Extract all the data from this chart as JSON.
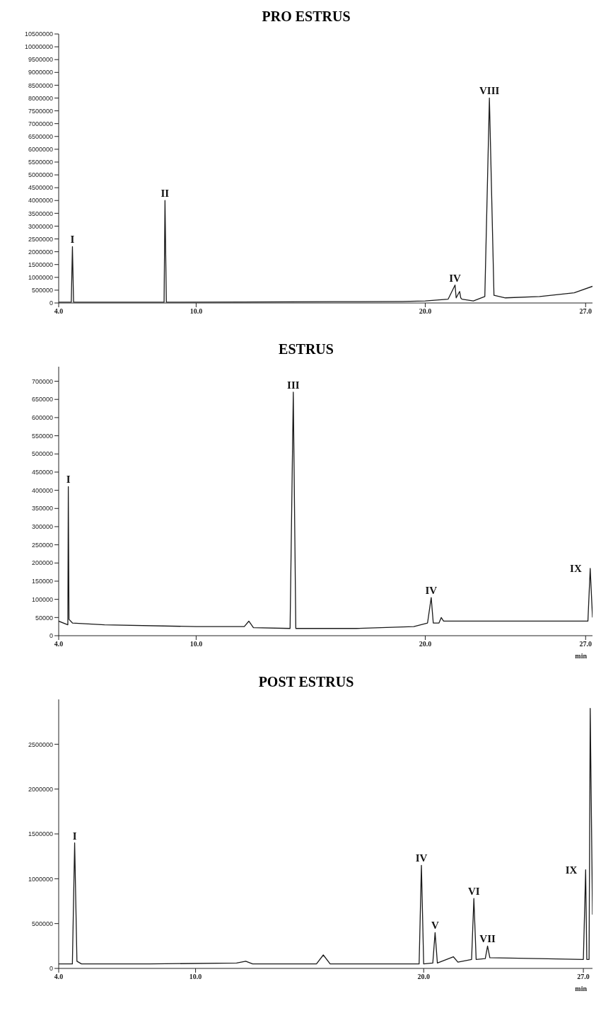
{
  "chart_data": [
    {
      "type": "line",
      "title": "PRO ESTRUS",
      "x": [
        4.0,
        4.55,
        4.6,
        4.65,
        5,
        8,
        8.6,
        8.64,
        8.7,
        12,
        16,
        19,
        20,
        21.0,
        21.3,
        21.35,
        21.5,
        21.55,
        21.6,
        22.1,
        22.6,
        22.8,
        23.0,
        23.5,
        25,
        26.5,
        27.3
      ],
      "series": [
        {
          "color": "#1a1a1a",
          "values": [
            30000,
            30000,
            2200000,
            30000,
            30000,
            30000,
            30000,
            4000000,
            30000,
            40000,
            50000,
            60000,
            80000,
            150000,
            700000,
            200000,
            450000,
            200000,
            150000,
            80000,
            250000,
            8000000,
            300000,
            200000,
            250000,
            400000,
            650000
          ]
        }
      ],
      "xlim": [
        4,
        27.3
      ],
      "xticks": [
        {
          "value": 4,
          "label": "4.0"
        },
        {
          "value": 10,
          "label": "10.0"
        },
        {
          "value": 20,
          "label": "20.0"
        },
        {
          "value": 27,
          "label": "27.0"
        }
      ],
      "ylim": [
        0,
        10500000
      ],
      "yticks": [
        0,
        500000,
        1000000,
        1500000,
        2000000,
        2500000,
        3000000,
        3500000,
        4000000,
        4500000,
        5000000,
        5500000,
        6000000,
        6500000,
        7000000,
        7500000,
        8000000,
        8500000,
        9000000,
        9500000,
        10000000,
        10500000
      ],
      "annotations": [
        {
          "text": "I",
          "x": 4.6,
          "y": 2200000
        },
        {
          "text": "II",
          "x": 8.64,
          "y": 4000000
        },
        {
          "text": "IV",
          "x": 21.3,
          "y": 700000
        },
        {
          "text": "VIII",
          "x": 22.8,
          "y": 8000000
        }
      ],
      "grid": false,
      "legend": false,
      "marker": "none",
      "line_style": "solid"
    },
    {
      "type": "line",
      "title": "ESTRUS",
      "xlabel": "min",
      "x": [
        4.0,
        4.4,
        4.42,
        4.45,
        4.6,
        6,
        10,
        12.1,
        12.3,
        12.5,
        14.1,
        14.24,
        14.35,
        17,
        19.5,
        20.1,
        20.26,
        20.35,
        20.6,
        20.7,
        20.8,
        21,
        24,
        27.1,
        27.2,
        27.3
      ],
      "series": [
        {
          "color": "#1a1a1a",
          "values": [
            40000,
            30000,
            410000,
            45000,
            35000,
            30000,
            25000,
            25000,
            40000,
            22000,
            20000,
            670000,
            20000,
            20000,
            25000,
            35000,
            105000,
            35000,
            35000,
            50000,
            40000,
            40000,
            40000,
            40000,
            185000,
            50000
          ]
        }
      ],
      "xlim": [
        4,
        27.3
      ],
      "xticks": [
        {
          "value": 4,
          "label": "4.0"
        },
        {
          "value": 10,
          "label": "10.0"
        },
        {
          "value": 20,
          "label": "20.0"
        },
        {
          "value": 27,
          "label": "27.0"
        }
      ],
      "ylim": [
        0,
        740000
      ],
      "yticks": [
        0,
        50000,
        100000,
        150000,
        200000,
        250000,
        300000,
        350000,
        400000,
        450000,
        500000,
        550000,
        600000,
        650000,
        700000
      ],
      "annotations": [
        {
          "text": "I",
          "x": 4.42,
          "y": 410000
        },
        {
          "text": "III",
          "x": 14.24,
          "y": 670000
        },
        {
          "text": "IV",
          "x": 20.26,
          "y": 105000
        },
        {
          "text": "IX",
          "x": 27.2,
          "y": 185000
        }
      ],
      "grid": false,
      "legend": false,
      "marker": "none",
      "line_style": "solid"
    },
    {
      "type": "line",
      "title": "POST ESTRUS",
      "xlabel": "min",
      "x": [
        4.0,
        4.6,
        4.7,
        4.8,
        5.0,
        8,
        11.8,
        12.2,
        12.5,
        15.3,
        15.6,
        15.9,
        18,
        19.8,
        19.9,
        20.0,
        20.4,
        20.5,
        20.6,
        21.3,
        21.5,
        22.1,
        22.2,
        22.3,
        22.7,
        22.8,
        22.9,
        25,
        27.0,
        27.1,
        27.15,
        27.25,
        27.3,
        27.4
      ],
      "series": [
        {
          "color": "#1a1a1a",
          "values": [
            50000,
            50000,
            1400000,
            80000,
            50000,
            50000,
            60000,
            80000,
            50000,
            50000,
            150000,
            50000,
            50000,
            50000,
            1150000,
            50000,
            60000,
            400000,
            60000,
            130000,
            70000,
            100000,
            780000,
            100000,
            110000,
            250000,
            120000,
            110000,
            100000,
            1100000,
            100000,
            100000,
            2900000,
            600000
          ]
        }
      ],
      "xlim": [
        4,
        27.4
      ],
      "xticks": [
        {
          "value": 4,
          "label": "4.0"
        },
        {
          "value": 10,
          "label": "10.0"
        },
        {
          "value": 20,
          "label": "20.0"
        },
        {
          "value": 27,
          "label": "27.0"
        }
      ],
      "ylim": [
        0,
        3000000
      ],
      "yticks": [
        0,
        500000,
        1000000,
        1500000,
        2000000,
        2500000
      ],
      "annotations": [
        {
          "text": "I",
          "x": 4.7,
          "y": 1400000
        },
        {
          "text": "IV",
          "x": 19.9,
          "y": 1150000
        },
        {
          "text": "V",
          "x": 20.5,
          "y": 400000
        },
        {
          "text": "VI",
          "x": 22.2,
          "y": 780000
        },
        {
          "text": "VII",
          "x": 22.8,
          "y": 250000
        },
        {
          "text": "IX",
          "x": 27.1,
          "y": 1100000
        }
      ],
      "grid": false,
      "legend": false,
      "marker": "none",
      "line_style": "solid"
    }
  ]
}
